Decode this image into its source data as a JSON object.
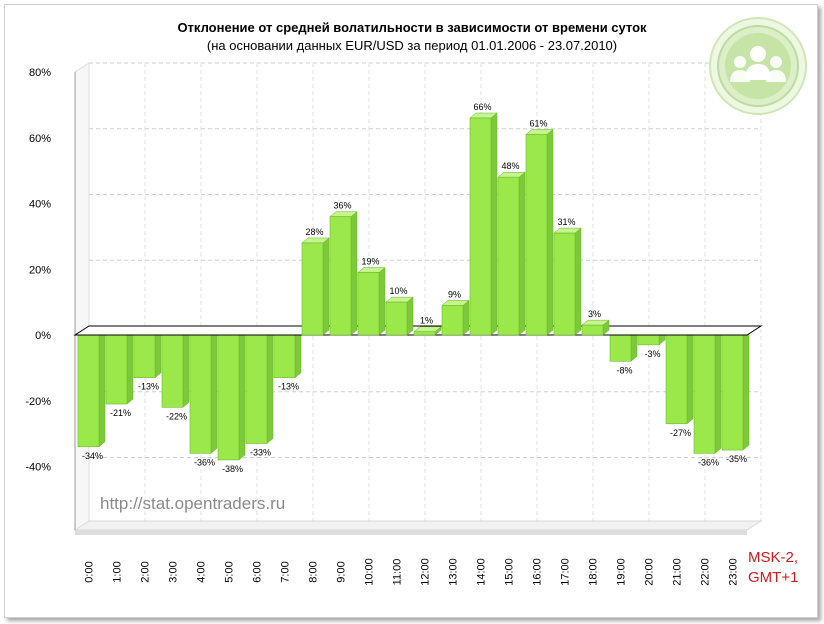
{
  "chart_data": {
    "type": "bar",
    "title": "Отклонение от средней волатильности в зависимости от времени суток",
    "subtitle": "(на основании данных EUR/USD за период 01.01.2006 - 23.07.2010)",
    "categories": [
      "0:00",
      "1:00",
      "2:00",
      "3:00",
      "4:00",
      "5:00",
      "6:00",
      "7:00",
      "8:00",
      "9:00",
      "10:00",
      "11:00",
      "12:00",
      "13:00",
      "14:00",
      "15:00",
      "16:00",
      "17:00",
      "18:00",
      "19:00",
      "20:00",
      "21:00",
      "22:00",
      "23:00"
    ],
    "values": [
      -34,
      -21,
      -13,
      -22,
      -36,
      -38,
      -33,
      -13,
      28,
      36,
      19,
      10,
      1,
      9,
      66,
      48,
      61,
      31,
      3,
      -8,
      -3,
      -27,
      -36,
      -35
    ],
    "data_labels": [
      "-34%",
      "-21%",
      "-13%",
      "-22%",
      "-36%",
      "-38%",
      "-33%",
      "-13%",
      "28%",
      "36%",
      "19%",
      "10%",
      "1%",
      "9%",
      "66%",
      "48%",
      "61%",
      "31%",
      "3%",
      "-8%",
      "-3%",
      "-27%",
      "-36%",
      "-35%"
    ],
    "yticks": [
      "80%",
      "60%",
      "40%",
      "20%",
      "0%",
      "-20%",
      "-40%"
    ],
    "ylim": [
      -60,
      80
    ],
    "grid": true,
    "bar_color": "#9be84a"
  },
  "watermark": "http://stat.opentraders.ru",
  "timezone_note": [
    "MSK-2,",
    "GMT+1"
  ],
  "logo": "opentraders-people-icon"
}
